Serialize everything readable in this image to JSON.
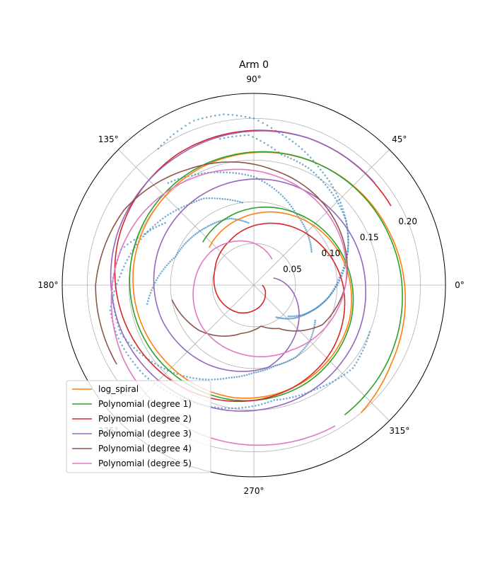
{
  "chart_data": {
    "type": "line",
    "title": "Arm 0",
    "projection": "polar",
    "theta_tick_labels": [
      "0°",
      "45°",
      "90°",
      "135°",
      "180°",
      "225°",
      "270°",
      "315°"
    ],
    "radial_tick_values": [
      0.05,
      0.1,
      0.15,
      0.2
    ],
    "radial_tick_labels": [
      "0.05",
      "0.10",
      "0.15",
      "0.20"
    ],
    "rlim": [
      0,
      0.23
    ],
    "radial_label_angle_deg": 22.5,
    "grid": true,
    "legend_location": "lower left",
    "colors": {
      "data": "#1f77b4",
      "log_spiral": "#ff7f0e",
      "deg1": "#2ca02c",
      "deg2": "#d62728",
      "deg3": "#9467bd",
      "deg4": "#8c564b",
      "deg5": "#e377c2"
    },
    "data_points": {
      "name": "arm data",
      "segments": [
        {
          "theta_deg": [
            -42,
            -30,
            -15,
            0,
            15,
            30,
            45,
            60,
            72,
            82,
            90,
            100,
            110,
            118,
            125
          ],
          "r": [
            0.056,
            0.07,
            0.085,
            0.1,
            0.115,
            0.13,
            0.145,
            0.16,
            0.175,
            0.187,
            0.2,
            0.208,
            0.21,
            0.205,
            0.2
          ]
        },
        {
          "theta_deg": [
            -55,
            -40,
            -25,
            -10,
            5,
            20,
            35,
            50,
            65,
            78,
            92,
            103
          ],
          "r": [
            0.047,
            0.062,
            0.075,
            0.09,
            0.103,
            0.12,
            0.135,
            0.145,
            0.155,
            0.16,
            0.18,
            0.18
          ]
        },
        {
          "theta_deg": [
            -30,
            -45,
            -60,
            -75,
            -90,
            -105,
            -120,
            -140,
            -160,
            -180,
            -195,
            -205,
            -215
          ],
          "r": [
            0.085,
            0.095,
            0.1,
            0.1,
            0.105,
            0.115,
            0.13,
            0.15,
            0.17,
            0.17,
            0.165,
            0.145,
            0.13
          ]
        },
        {
          "theta_deg": [
            -22,
            -40,
            -60,
            -80,
            -100,
            -120,
            -140,
            -160,
            -170,
            -185,
            -210,
            -230,
            -240,
            -250,
            -262
          ],
          "r": [
            0.15,
            0.155,
            0.145,
            0.14,
            0.15,
            0.16,
            0.17,
            0.175,
            0.175,
            0.16,
            0.14,
            0.125,
            0.12,
            0.11,
            0.1
          ]
        },
        {
          "theta_deg": [
            30,
            45,
            60,
            75,
            90,
            105,
            118,
            130
          ],
          "r": [
            0.08,
            0.09,
            0.1,
            0.115,
            0.13,
            0.14,
            0.15,
            0.16
          ]
        },
        {
          "theta_deg": [
            -170,
            -180,
            -190,
            -200,
            -215,
            -230,
            -250,
            -265
          ],
          "r": [
            0.13,
            0.12,
            0.11,
            0.1,
            0.095,
            0.09,
            0.085,
            0.075
          ]
        }
      ]
    },
    "series": [
      {
        "name": "log_spiral",
        "color_key": "log_spiral",
        "theta_deg": [
          140,
          100,
          60,
          20,
          -20,
          -60,
          -100,
          -140,
          -180,
          -220,
          -260,
          -300,
          -340,
          -390,
          -410
        ],
        "r": [
          0.07,
          0.082,
          0.096,
          0.11,
          0.122,
          0.13,
          0.137,
          0.14,
          0.145,
          0.15,
          0.157,
          0.165,
          0.175,
          0.19,
          0.2
        ]
      },
      {
        "name": "Polynomial (degree 1)",
        "color_key": "deg1",
        "theta_deg": [
          140,
          100,
          60,
          20,
          -20,
          -60,
          -100,
          -140,
          -180,
          -220,
          -260,
          -300,
          -340,
          -390,
          -415
        ],
        "r": [
          0.08,
          0.09,
          0.1,
          0.112,
          0.124,
          0.133,
          0.14,
          0.145,
          0.149,
          0.153,
          0.158,
          0.165,
          0.173,
          0.185,
          0.19
        ]
      },
      {
        "name": "Polynomial (degree 2)",
        "color_key": "deg2",
        "theta_deg": [
          0,
          -40,
          -80,
          -120,
          -160,
          -200,
          -240,
          -280,
          -320,
          -360,
          -400,
          -440,
          -480,
          -520,
          -560,
          -600,
          -650,
          -690
        ],
        "r": [
          0.01,
          0.018,
          0.028,
          0.038,
          0.045,
          0.05,
          0.06,
          0.075,
          0.09,
          0.107,
          0.122,
          0.135,
          0.148,
          0.16,
          0.172,
          0.182,
          0.188,
          0.19
        ]
      },
      {
        "name": "Polynomial (degree 3)",
        "color_key": "deg3",
        "theta_deg": [
          20,
          0,
          -40,
          -80,
          -120,
          -160,
          -200,
          -240,
          -280,
          -320,
          -360,
          -400,
          -440,
          -480,
          -520,
          -560,
          -600,
          -650,
          -680
        ],
        "r": [
          0.025,
          0.04,
          0.07,
          0.1,
          0.11,
          0.118,
          0.122,
          0.125,
          0.128,
          0.13,
          0.134,
          0.14,
          0.148,
          0.158,
          0.168,
          0.175,
          0.18,
          0.188,
          0.19
        ]
      },
      {
        "name": "Polynomial (degree 4)",
        "color_key": "deg4",
        "theta_deg": [
          190,
          220,
          255,
          280,
          300,
          330,
          360,
          400,
          440,
          480,
          510,
          540,
          570
        ],
        "r": [
          0.1,
          0.085,
          0.06,
          0.05,
          0.06,
          0.095,
          0.11,
          0.125,
          0.14,
          0.16,
          0.18,
          0.19,
          0.19
        ]
      },
      {
        "name": "Polynomial (degree 5)",
        "color_key": "deg5",
        "theta_deg": [
          55,
          95,
          140,
          180,
          220,
          260,
          300,
          330,
          360,
          400,
          440,
          480,
          510,
          540,
          570,
          610,
          660
        ],
        "r": [
          0.038,
          0.052,
          0.065,
          0.072,
          0.08,
          0.084,
          0.09,
          0.1,
          0.11,
          0.122,
          0.134,
          0.148,
          0.16,
          0.17,
          0.18,
          0.19,
          0.195
        ]
      }
    ]
  }
}
